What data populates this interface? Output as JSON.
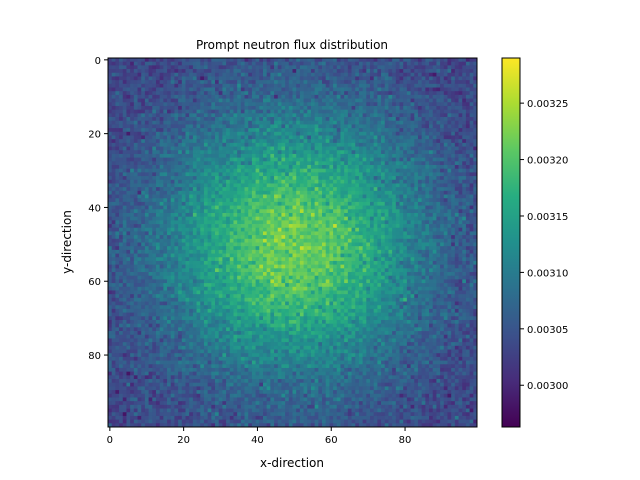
{
  "chart_data": {
    "type": "heatmap",
    "title": "Prompt neutron flux distribution",
    "xlabel": "x-direction",
    "ylabel": "y-direction",
    "grid_size": [
      100,
      100
    ],
    "xlim": [
      -0.5,
      99.5
    ],
    "ylim": [
      99.5,
      -0.5
    ],
    "x_ticks": [
      0,
      20,
      40,
      60,
      80
    ],
    "y_ticks": [
      0,
      20,
      40,
      60,
      80
    ],
    "colormap": "viridis",
    "color_range": [
      0.002963,
      0.00329
    ],
    "colorbar_ticks": [
      0.003,
      0.00305,
      0.0031,
      0.00315,
      0.0032,
      0.00325
    ],
    "colorbar_tick_labels": [
      "0.00300",
      "0.00305",
      "0.00310",
      "0.00315",
      "0.00320",
      "0.00325"
    ],
    "distribution": {
      "shape": "radially symmetric peak with speckle noise",
      "center": [
        50,
        50
      ],
      "peak_value": 0.00322,
      "edge_value": 0.00303,
      "noise_amplitude": 3e-05,
      "max_value": 0.00329,
      "min_value": 0.002963
    }
  }
}
